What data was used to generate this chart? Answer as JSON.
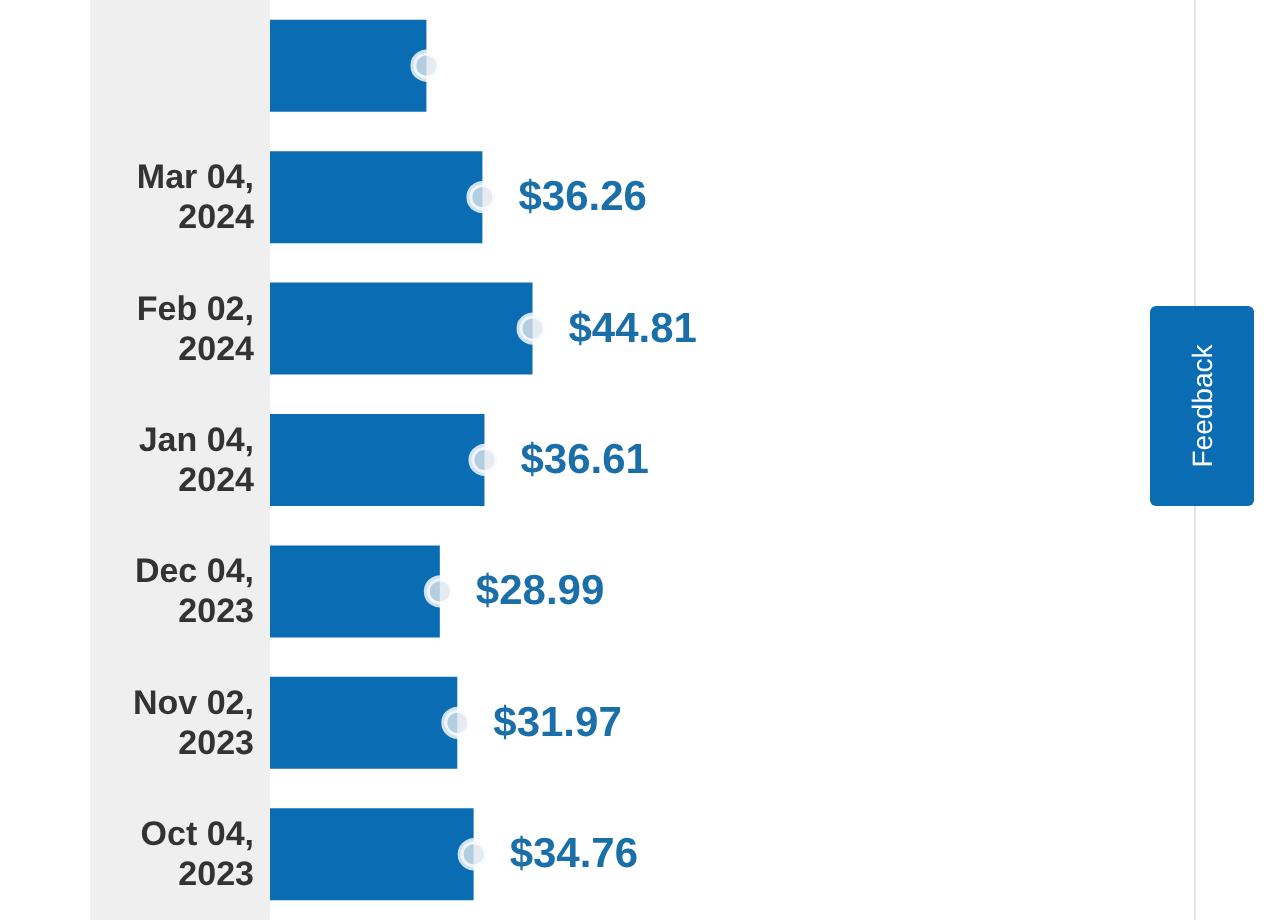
{
  "chart_data": {
    "type": "bar",
    "orientation": "horizontal",
    "categories": [
      null,
      "Mar 04, 2024",
      "Feb 02, 2024",
      "Jan 04, 2024",
      "Dec 04, 2023",
      "Nov 02, 2023",
      "Oct 04, 2023"
    ],
    "series": [
      {
        "color": "#0a6db3",
        "values": [
          26.7,
          36.26,
          44.81,
          36.61,
          28.99,
          31.97,
          34.76
        ],
        "value_labels": [
          null,
          "$36.26",
          "$44.81",
          "$36.61",
          "$28.99",
          "$31.97",
          "$34.76"
        ]
      },
      {
        "type": "scatter",
        "color": "#dfe6ec",
        "marker": "circle",
        "values": [
          26.7,
          36.26,
          44.81,
          36.61,
          28.99,
          31.97,
          34.76
        ]
      }
    ],
    "grid": false,
    "annotations": [
      "Feedback"
    ]
  }
}
